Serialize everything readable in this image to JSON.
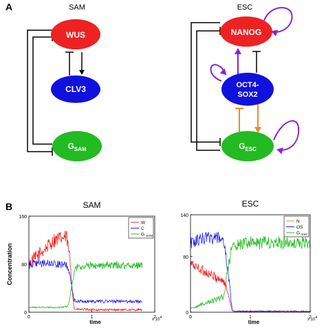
{
  "figure": {
    "panel_a_label": "A",
    "panel_b_label": "B",
    "sam_title": "SAM",
    "esc_title": "ESC",
    "colors": {
      "red": "#ee2222",
      "blue": "#1111dd",
      "green": "#22bb22",
      "purple": "#8822dd",
      "orange": "#ee8822"
    }
  },
  "diagram_sam": {
    "nodes": {
      "wus": "WUS",
      "clv3": "CLV3",
      "gsam": "G",
      "gsam_sub": "SAM"
    }
  },
  "diagram_esc": {
    "nodes": {
      "nanog": "NANOG",
      "os_line1": "OCT4-",
      "os_line2": "SOX2",
      "gesc": "G",
      "gesc_sub": "ESC"
    }
  },
  "chart_data": [
    {
      "type": "line",
      "title": "SAM",
      "ylabel": "Concentration",
      "xlabel": "time",
      "x_multiplier": "x 10",
      "x_multiplier_exp": "4",
      "xlim": [
        0,
        2
      ],
      "ylim": [
        0,
        160
      ],
      "xticks": [
        "0",
        "1",
        "2"
      ],
      "yticks": [
        "0",
        "80",
        "160"
      ],
      "legend": {
        "position": "top-right",
        "entries": [
          {
            "name": "W",
            "color": "#ee2222"
          },
          {
            "name": "C",
            "color": "#2222ee"
          },
          {
            "name": "G",
            "sub": "SAM",
            "color": "#22bb22"
          }
        ]
      },
      "series": [
        {
          "name": "W",
          "color": "#ee2222",
          "x": [
            0,
            0.2,
            0.4,
            0.6,
            0.65,
            0.72,
            1.0,
            1.5,
            1.8
          ],
          "values": [
            80,
            100,
            120,
            125,
            90,
            5,
            4,
            4,
            4
          ],
          "noise": 12
        },
        {
          "name": "C",
          "color": "#2222ee",
          "x": [
            0,
            0.3,
            0.6,
            0.65,
            0.72,
            0.8,
            1.2,
            1.8
          ],
          "values": [
            80,
            82,
            78,
            60,
            20,
            18,
            18,
            18
          ],
          "noise": 6
        },
        {
          "name": "G SAM",
          "color": "#22bb22",
          "x": [
            0,
            0.5,
            0.62,
            0.68,
            0.74,
            1.0,
            1.5,
            1.8
          ],
          "values": [
            8,
            8,
            10,
            40,
            75,
            78,
            78,
            78
          ],
          "noise": 6
        }
      ]
    },
    {
      "type": "line",
      "title": "ESC",
      "ylabel": "",
      "xlabel": "time",
      "x_multiplier": "x 10",
      "x_multiplier_exp": "4",
      "xlim": [
        0,
        2
      ],
      "ylim": [
        0,
        140
      ],
      "xticks": [
        "0",
        "1",
        "2"
      ],
      "yticks": [
        "0",
        "80",
        "140"
      ],
      "legend": {
        "position": "top-right",
        "entries": [
          {
            "name": "N",
            "color": "#ee8822"
          },
          {
            "name": "OS",
            "color": "#2222ee"
          },
          {
            "name": "G",
            "sub": "ESC",
            "color": "#22bb22"
          }
        ]
      },
      "series": [
        {
          "name": "N",
          "color": "#ee2222",
          "x": [
            0,
            0.3,
            0.55,
            0.62,
            0.7,
            0.8,
            2.0
          ],
          "values": [
            70,
            55,
            45,
            30,
            2,
            1,
            1
          ],
          "noise": 7
        },
        {
          "name": "OS",
          "color": "#2222ee",
          "x": [
            0,
            0.3,
            0.55,
            0.62,
            0.7,
            0.8,
            2.0
          ],
          "values": [
            100,
            108,
            105,
            60,
            2,
            1,
            1
          ],
          "noise": 9
        },
        {
          "name": "G ESC",
          "color": "#22bb22",
          "x": [
            0,
            0.3,
            0.55,
            0.62,
            0.7,
            1.0,
            1.5,
            2.0
          ],
          "values": [
            5,
            15,
            22,
            60,
            95,
            100,
            100,
            100
          ],
          "noise": 9
        }
      ]
    }
  ]
}
